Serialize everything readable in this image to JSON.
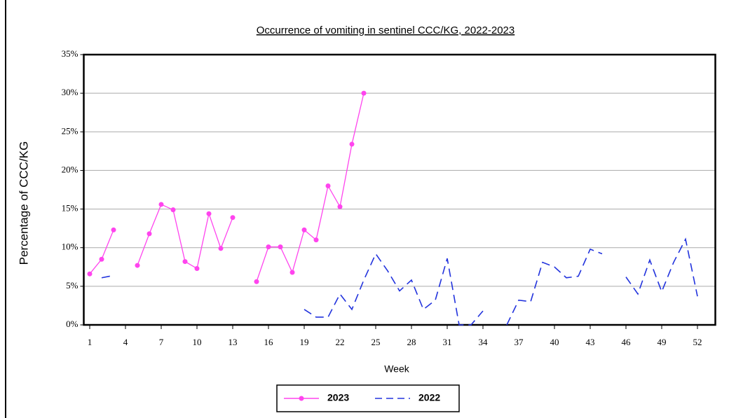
{
  "chart_data": {
    "type": "line",
    "title": "Occurrence of vomiting  in  sentinel CCC/KG,  2022-2023",
    "x_label": "Week",
    "y_label": "Percentage of CCC/KG",
    "x": [
      1,
      2,
      3,
      4,
      5,
      6,
      7,
      8,
      9,
      10,
      11,
      12,
      13,
      14,
      15,
      16,
      17,
      18,
      19,
      20,
      21,
      22,
      23,
      24,
      25,
      26,
      27,
      28,
      29,
      30,
      31,
      32,
      33,
      34,
      35,
      36,
      37,
      38,
      39,
      40,
      41,
      42,
      43,
      44,
      45,
      46,
      47,
      48,
      49,
      50,
      51,
      52
    ],
    "xlim": [
      0.5,
      53.5
    ],
    "xticks": [
      1,
      4,
      7,
      10,
      13,
      16,
      19,
      22,
      25,
      28,
      31,
      34,
      37,
      40,
      43,
      46,
      49,
      52
    ],
    "ylim": [
      0,
      35
    ],
    "yticks": [
      {
        "value": 0,
        "label": "0%"
      },
      {
        "value": 5,
        "label": "5%"
      },
      {
        "value": 10,
        "label": "10%"
      },
      {
        "value": 15,
        "label": "15%"
      },
      {
        "value": 20,
        "label": "20%"
      },
      {
        "value": 25,
        "label": "25%"
      },
      {
        "value": 30,
        "label": "30%"
      },
      {
        "value": 35,
        "label": "35%"
      }
    ],
    "grid": true,
    "legend": "bottom",
    "series": [
      {
        "name": "2023",
        "color": "#ff44ee",
        "dashed": false,
        "markers": true,
        "values": [
          6.6,
          8.5,
          12.3,
          null,
          7.7,
          11.8,
          15.6,
          14.9,
          8.2,
          7.3,
          14.4,
          9.9,
          13.9,
          null,
          5.6,
          10.1,
          10.1,
          6.8,
          12.3,
          11.0,
          18.0,
          15.3,
          23.4,
          30.0,
          null,
          null,
          null,
          null,
          null,
          null,
          null,
          null,
          null,
          null,
          null,
          null,
          null,
          null,
          null,
          null,
          null,
          null,
          null,
          null,
          null,
          null,
          null,
          null,
          null,
          null,
          null,
          null
        ]
      },
      {
        "name": "2022",
        "color": "#2233dd",
        "dashed": true,
        "markers": false,
        "values": [
          null,
          6.1,
          6.4,
          null,
          null,
          null,
          null,
          null,
          null,
          null,
          null,
          null,
          null,
          null,
          null,
          null,
          null,
          null,
          2.0,
          1.0,
          1.0,
          4.0,
          2.0,
          5.8,
          9.2,
          7.0,
          4.4,
          5.8,
          2.0,
          3.2,
          8.6,
          0,
          0,
          1.8,
          null,
          0,
          3.2,
          3.0,
          8.1,
          7.5,
          6.1,
          6.3,
          9.8,
          9.2,
          null,
          6.2,
          4.0,
          8.4,
          4.3,
          8.1,
          11.1,
          3.7
        ]
      }
    ]
  }
}
